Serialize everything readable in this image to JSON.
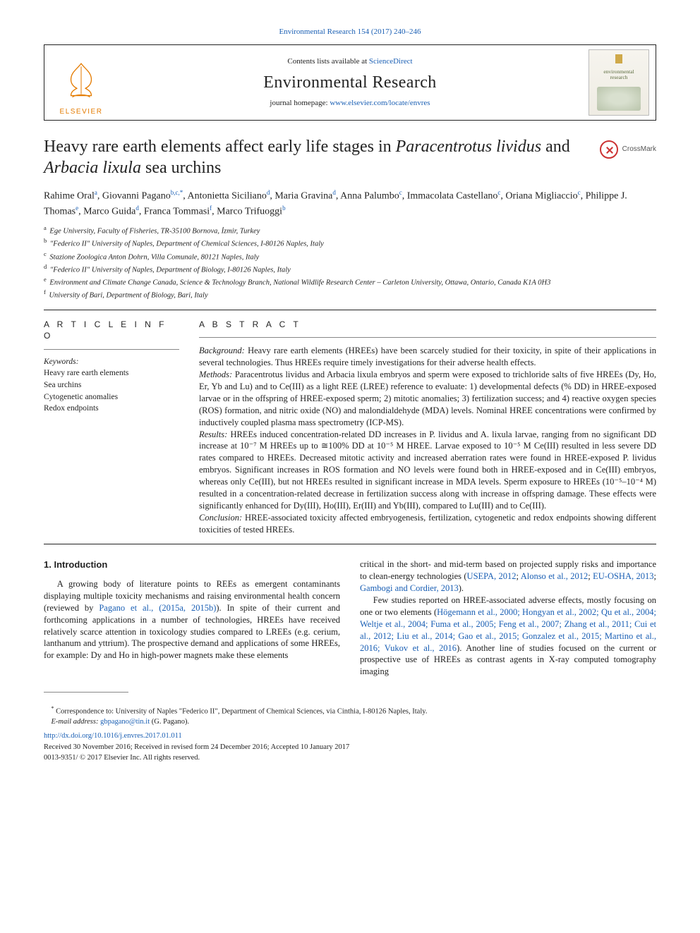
{
  "citation": "Environmental Research 154 (2017) 240–246",
  "header": {
    "contents_prefix": "Contents lists available at ",
    "contents_link": "ScienceDirect",
    "journal_name": "Environmental Research",
    "homepage_prefix": "journal homepage: ",
    "homepage_url": "www.elsevier.com/locate/envres",
    "elsevier_word": "ELSEVIER",
    "cover_word1": "environmental",
    "cover_word2": "research",
    "crossmark_label": "CrossMark"
  },
  "title": {
    "pre": "Heavy rare earth elements affect early life stages in ",
    "ital1": "Paracentrotus lividus",
    "mid": " and ",
    "ital2": "Arbacia lixula",
    "post": " sea urchins"
  },
  "authors_html": "Rahime Oral<sup>a</sup>, Giovanni Pagano<sup>b,c,*</sup>, Antonietta Siciliano<sup>d</sup>, Maria Gravina<sup>d</sup>, Anna Palumbo<sup>c</sup>, Immacolata Castellano<sup>c</sup>, Oriana Migliaccio<sup>c</sup>, Philippe J. Thomas<sup>e</sup>, Marco Guida<sup>d</sup>, Franca Tommasi<sup>f</sup>, Marco Trifuoggi<sup>b</sup>",
  "affiliations": [
    {
      "k": "a",
      "t": "Ege University, Faculty of Fisheries, TR-35100 Bornova, İzmir, Turkey"
    },
    {
      "k": "b",
      "t": "\"Federico II\" University of Naples, Department of Chemical Sciences, I-80126 Naples, Italy"
    },
    {
      "k": "c",
      "t": "Stazione Zoologica Anton Dohrn, Villa Comunale, 80121 Naples, Italy"
    },
    {
      "k": "d",
      "t": "\"Federico II\" University of Naples, Department of Biology, I-80126 Naples, Italy"
    },
    {
      "k": "e",
      "t": "Environment and Climate Change Canada, Science & Technology Branch, National Wildlife Research Center – Carleton University, Ottawa, Ontario, Canada K1A 0H3"
    },
    {
      "k": "f",
      "t": "University of Bari, Department of Biology, Bari, Italy"
    }
  ],
  "info": {
    "article_info_head": "A R T I C L E  I N F O",
    "abstract_head": "A B S T R A C T",
    "keywords_label": "Keywords:",
    "keywords": [
      "Heavy rare earth elements",
      "Sea urchins",
      "Cytogenetic anomalies",
      "Redox endpoints"
    ]
  },
  "abstract": {
    "background_label": "Background:",
    "background": " Heavy rare earth elements (HREEs) have been scarcely studied for their toxicity, in spite of their applications in several technologies. Thus HREEs require timely investigations for their adverse health effects.",
    "methods_label": "Methods:",
    "methods": " Paracentrotus lividus and Arbacia lixula embryos and sperm were exposed to trichloride salts of five HREEs (Dy, Ho, Er, Yb and Lu) and to Ce(III) as a light REE (LREE) reference to evaluate: 1) developmental defects (% DD) in HREE-exposed larvae or in the offspring of HREE-exposed sperm; 2) mitotic anomalies; 3) fertilization success; and 4) reactive oxygen species (ROS) formation, and nitric oxide (NO) and malondialdehyde (MDA) levels. Nominal HREE concentrations were confirmed by inductively coupled plasma mass spectrometry (ICP-MS).",
    "results_label": "Results:",
    "results": " HREEs induced concentration-related DD increases in P. lividus and A. lixula larvae, ranging from no significant DD increase at 10⁻⁷ M HREEs up to ≅100% DD at 10⁻⁵ M HREE. Larvae exposed to 10⁻⁵ M Ce(III) resulted in less severe DD rates compared to HREEs. Decreased mitotic activity and increased aberration rates were found in HREE-exposed P. lividus embryos. Significant increases in ROS formation and NO levels were found both in HREE-exposed and in Ce(III) embryos, whereas only Ce(III), but not HREEs resulted in significant increase in MDA levels. Sperm exposure to HREEs (10⁻⁵–10⁻⁴ M) resulted in a concentration-related decrease in fertilization success along with increase in offspring damage. These effects were significantly enhanced for Dy(III), Ho(III), Er(III) and Yb(III), compared to Lu(III) and to Ce(III).",
    "conclusion_label": "Conclusion:",
    "conclusion": " HREE-associated toxicity affected embryogenesis, fertilization, cytogenetic and redox endpoints showing different toxicities of tested HREEs."
  },
  "intro": {
    "heading": "1. Introduction",
    "left_p1a": "A growing body of literature points to REEs as emergent contaminants displaying multiple toxicity mechanisms and raising environmental health concern (reviewed by ",
    "left_ref1": "Pagano et al., (2015a, 2015b)",
    "left_p1b": "). In spite of their current and forthcoming applications in a number of technologies, HREEs have received relatively scarce attention in toxicology studies compared to LREEs (e.g. cerium, lanthanum and yttrium). The prospective demand and applications of some HREEs, for example: Dy and Ho in high-power magnets make these elements",
    "right_p1a": "critical in the short- and mid-term based on projected supply risks and importance to clean-energy technologies (",
    "right_ref1": "USEPA, 2012",
    "right_ref2": "Alonso et al., 2012",
    "right_ref3": "EU-OSHA, 2013",
    "right_ref4": "Gambogi and Cordier, 2013",
    "right_p1b": ").",
    "right_p2a": "Few studies reported on HREE-associated adverse effects, mostly focusing on one or two elements (",
    "right_ref5": "Högemann et al., 2000; Hongyan et al., 2002; Qu et al., 2004; Weltje et al., 2004; Fuma et al., 2005; Feng et al., 2007; Zhang et al., 2011; Cui et al., 2012; Liu et al., 2014; Gao et al., 2015; Gonzalez et al., 2015; Martino et al., 2016; Vukov et al., 2016",
    "right_p2b": "). Another line of studies focused on the current or prospective use of HREEs as contrast agents in X-ray computed tomography imaging"
  },
  "footer": {
    "corr_marker": "*",
    "corr_text": " Correspondence to: University of Naples \"Federico II\", Department of Chemical Sciences, via Cinthia, I-80126 Naples, Italy.",
    "email_label": "E-mail address: ",
    "email": "gbpagano@tin.it",
    "email_who": " (G. Pagano).",
    "doi": "http://dx.doi.org/10.1016/j.envres.2017.01.011",
    "received": "Received 30 November 2016; Received in revised form 24 December 2016; Accepted 10 January 2017",
    "copyright": "0013-9351/ © 2017 Elsevier Inc. All rights reserved."
  },
  "colors": {
    "link": "#1a5fb4",
    "elsevier_orange": "#e47b00",
    "crossmark_red": "#c33"
  }
}
